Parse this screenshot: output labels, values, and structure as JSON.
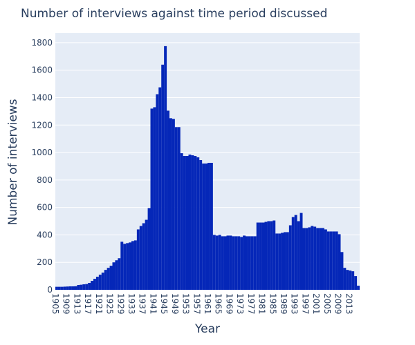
{
  "chart_data": {
    "type": "bar",
    "title": "Number of interviews against time period discussed",
    "x_label": "Year",
    "y_label": "Number of interviews",
    "color": "#0527b8",
    "grid": true,
    "x": [
      1905,
      1906,
      1907,
      1908,
      1909,
      1910,
      1911,
      1912,
      1913,
      1914,
      1915,
      1916,
      1917,
      1918,
      1919,
      1920,
      1921,
      1922,
      1923,
      1924,
      1925,
      1926,
      1927,
      1928,
      1929,
      1930,
      1931,
      1932,
      1933,
      1934,
      1935,
      1936,
      1937,
      1938,
      1939,
      1940,
      1941,
      1942,
      1943,
      1944,
      1945,
      1946,
      1947,
      1948,
      1949,
      1950,
      1951,
      1952,
      1953,
      1954,
      1955,
      1956,
      1957,
      1958,
      1959,
      1960,
      1961,
      1962,
      1963,
      1964,
      1965,
      1966,
      1967,
      1968,
      1969,
      1970,
      1971,
      1972,
      1973,
      1974,
      1975,
      1976,
      1977,
      1978,
      1979,
      1980,
      1981,
      1982,
      1983,
      1984,
      1985,
      1986,
      1987,
      1988,
      1989,
      1990,
      1991,
      1992,
      1993,
      1994,
      1995,
      1996,
      1997,
      1998,
      1999,
      2000,
      2001,
      2002,
      2003,
      2004,
      2005,
      2006,
      2007,
      2008,
      2009,
      2010,
      2011,
      2012,
      2013,
      2014,
      2015,
      2016
    ],
    "values": [
      22,
      22,
      22,
      23,
      24,
      25,
      25,
      26,
      35,
      37,
      40,
      42,
      50,
      65,
      80,
      95,
      110,
      125,
      145,
      160,
      175,
      200,
      215,
      230,
      350,
      335,
      340,
      345,
      355,
      360,
      440,
      465,
      485,
      510,
      595,
      1320,
      1330,
      1425,
      1475,
      1640,
      1775,
      1305,
      1250,
      1245,
      1185,
      1185,
      995,
      975,
      975,
      985,
      980,
      975,
      965,
      945,
      920,
      920,
      925,
      925,
      400,
      395,
      400,
      390,
      390,
      395,
      395,
      390,
      390,
      390,
      385,
      395,
      390,
      390,
      390,
      390,
      490,
      490,
      490,
      495,
      500,
      500,
      505,
      410,
      410,
      415,
      420,
      420,
      470,
      530,
      545,
      500,
      560,
      450,
      450,
      455,
      465,
      460,
      450,
      450,
      450,
      440,
      425,
      425,
      425,
      425,
      405,
      275,
      160,
      145,
      140,
      135,
      100,
      30
    ],
    "xlim": [
      1905,
      2017
    ],
    "xticks": [
      1905,
      1909,
      1913,
      1917,
      1921,
      1925,
      1929,
      1933,
      1937,
      1941,
      1945,
      1949,
      1953,
      1957,
      1961,
      1965,
      1969,
      1973,
      1977,
      1981,
      1985,
      1989,
      1993,
      1997,
      2001,
      2005,
      2009,
      2013
    ],
    "ylim": [
      0,
      1870
    ],
    "yticks": [
      0,
      200,
      400,
      600,
      800,
      1000,
      1200,
      1400,
      1600,
      1800
    ]
  }
}
